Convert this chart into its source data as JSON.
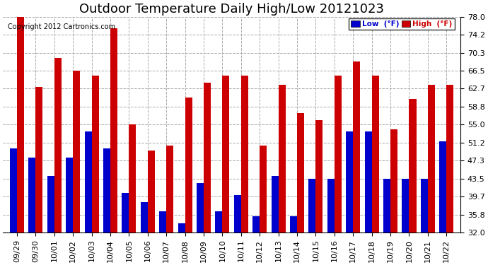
{
  "title": "Outdoor Temperature Daily High/Low 20121023",
  "copyright": "Copyright 2012 Cartronics.com",
  "legend_low": "Low  (°F)",
  "legend_high": "High  (°F)",
  "low_color": "#0000cc",
  "high_color": "#cc0000",
  "dates": [
    "09/29",
    "09/30",
    "10/01",
    "10/02",
    "10/03",
    "10/04",
    "10/05",
    "10/06",
    "10/07",
    "10/08",
    "10/09",
    "10/10",
    "10/11",
    "10/12",
    "10/13",
    "10/14",
    "10/15",
    "10/16",
    "10/17",
    "10/18",
    "10/19",
    "10/20",
    "10/21",
    "10/22"
  ],
  "highs": [
    78.0,
    63.0,
    69.2,
    66.5,
    65.5,
    75.5,
    55.0,
    49.5,
    50.5,
    60.8,
    64.0,
    65.5,
    65.5,
    50.5,
    63.5,
    57.5,
    56.0,
    65.5,
    68.5,
    65.5,
    54.0,
    60.5,
    63.5,
    63.5
  ],
  "lows": [
    50.0,
    48.0,
    44.0,
    48.0,
    53.5,
    50.0,
    40.5,
    38.5,
    36.5,
    34.0,
    42.5,
    36.5,
    40.0,
    35.5,
    44.0,
    35.5,
    43.5,
    43.5,
    53.5,
    53.5,
    43.5,
    43.5,
    43.5,
    51.5
  ],
  "ybase": 32.0,
  "ylim": [
    32.0,
    78.0
  ],
  "yticks": [
    32.0,
    35.8,
    39.7,
    43.5,
    47.3,
    51.2,
    55.0,
    58.8,
    62.7,
    66.5,
    70.3,
    74.2,
    78.0
  ],
  "bg_color": "#ffffff",
  "grid_color": "#aaaaaa",
  "title_fontsize": 13,
  "copyright_fontsize": 7,
  "tick_fontsize": 8
}
